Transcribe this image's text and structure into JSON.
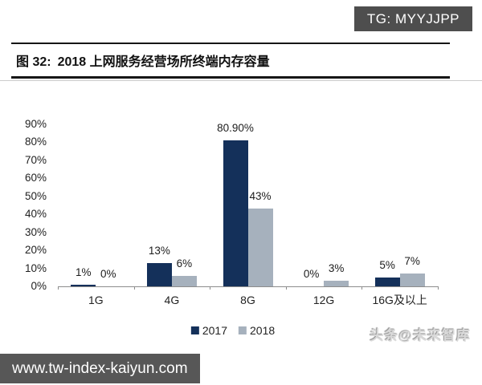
{
  "watermarks": {
    "tg_badge": "TG: MYYJJPP",
    "toutiao": "头条@未来智库",
    "url": "www.tw-index-kaiyun.com"
  },
  "header": {
    "figure_label": "图 32:",
    "title": "2018 上网服务经营场所终端内存容量"
  },
  "chart_data": {
    "type": "bar",
    "title": "2018 上网服务经营场所终端内存容量",
    "categories": [
      "1G",
      "4G",
      "8G",
      "12G",
      "16G及以上"
    ],
    "series": [
      {
        "name": "2017",
        "color": "#14305a",
        "values": [
          1,
          13,
          80.9,
          0,
          5
        ],
        "labels": [
          "1%",
          "13%",
          "80.90%",
          "0%",
          "5%"
        ]
      },
      {
        "name": "2018",
        "color": "#a6b1bd",
        "values": [
          0,
          6,
          43,
          3,
          7
        ],
        "labels": [
          "0%",
          "6%",
          "43%",
          "3%",
          "7%"
        ]
      }
    ],
    "xlabel": "",
    "ylabel": "",
    "ylim": [
      0,
      90
    ],
    "ytick_step": 10,
    "yticks": [
      "0%",
      "10%",
      "20%",
      "30%",
      "40%",
      "50%",
      "60%",
      "70%",
      "80%",
      "90%"
    ],
    "grid": false,
    "legend_position": "bottom"
  }
}
